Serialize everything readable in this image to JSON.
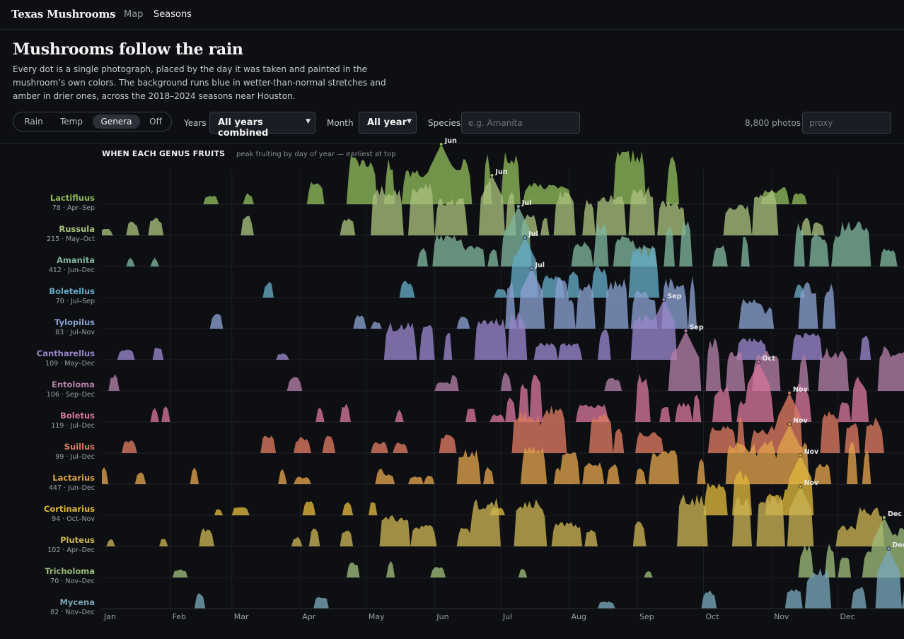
{
  "header": {
    "brand": "Texas Mushrooms",
    "nav": [
      {
        "label": "Map",
        "active": false
      },
      {
        "label": "Seasons",
        "active": true
      }
    ]
  },
  "page": {
    "title": "Mushrooms follow the rain",
    "intro": "Every dot is a single photograph, placed by the day it was taken and painted in the mushroom’s own colors. The background runs blue in wetter-than-normal stretches and amber in drier ones, across the 2018–2024 seasons near Houston."
  },
  "controls": {
    "modes": [
      {
        "label": "Rain",
        "active": false
      },
      {
        "label": "Temp",
        "active": false
      },
      {
        "label": "Genera",
        "active": true
      },
      {
        "label": "Off",
        "active": false
      }
    ],
    "years_label": "Years",
    "years_value": "All years combined",
    "month_label": "Month",
    "month_value": "All year",
    "species_label": "Species",
    "species_placeholder": "e.g. Amanita",
    "photo_count": "8,800 photos",
    "proxy_placeholder": "proxy"
  },
  "chart_data": {
    "type": "area",
    "title": "WHEN EACH GENUS FRUITS",
    "subtitle": "peak fruiting by day of year — earliest at top",
    "x_axis": {
      "unit": "day of year",
      "range": [
        1,
        365
      ],
      "ticks": [
        "Jan",
        "Feb",
        "Mar",
        "Apr",
        "May",
        "Jun",
        "Jul",
        "Aug",
        "Sep",
        "Oct",
        "Nov",
        "Dec"
      ]
    },
    "series": [
      {
        "name": "Lactifluus",
        "meta": "78 · Apr–Sep",
        "color": "#8fb85a",
        "peak_day": 155,
        "peak_label": "Jun",
        "season": [
          95,
          260
        ]
      },
      {
        "name": "Russula",
        "meta": "215 · May–Oct",
        "color": "#a9c07c",
        "peak_day": 178,
        "peak_label": "Jun",
        "season": [
          120,
          300
        ]
      },
      {
        "name": "Amanita",
        "meta": "412 · Jun–Dec",
        "color": "#7fb59b",
        "peak_day": 190,
        "peak_label": "Jul",
        "season": [
          150,
          350
        ]
      },
      {
        "name": "Boletellus",
        "meta": "70 · Jul–Sep",
        "color": "#67aac5",
        "peak_day": 193,
        "peak_label": "Jul",
        "season": [
          182,
          265
        ]
      },
      {
        "name": "Tylopilus",
        "meta": "83 · Jul–Nov",
        "color": "#8ba0d0",
        "peak_day": 196,
        "peak_label": "Jul",
        "season": [
          182,
          330
        ]
      },
      {
        "name": "Cantharellus",
        "meta": "109 · May–Dec",
        "color": "#9a87cc",
        "peak_day": 256,
        "peak_label": "Sep",
        "season": [
          120,
          350
        ]
      },
      {
        "name": "Entoloma",
        "meta": "106 · Sep–Dec",
        "color": "#b57fa6",
        "peak_day": 266,
        "peak_label": "Sep",
        "season": [
          244,
          365
        ]
      },
      {
        "name": "Boletus",
        "meta": "119 · Jul–Dec",
        "color": "#d5759a",
        "peak_day": 299,
        "peak_label": "Oct",
        "season": [
          182,
          350
        ]
      },
      {
        "name": "Suillus",
        "meta": "99 · Jul–Dec",
        "color": "#dc7a60",
        "peak_day": 313,
        "peak_label": "Nov",
        "season": [
          182,
          365
        ]
      },
      {
        "name": "Lactarius",
        "meta": "447 · Jun–Dec",
        "color": "#e0a24c",
        "peak_day": 313,
        "peak_label": "Nov",
        "season": [
          150,
          350
        ]
      },
      {
        "name": "Cortinarius",
        "meta": "94 · Oct–Nov",
        "color": "#e0b73c",
        "peak_day": 318,
        "peak_label": "Nov",
        "season": [
          274,
          334
        ]
      },
      {
        "name": "Pluteus",
        "meta": "102 · Apr–Dec",
        "color": "#c9b252",
        "peak_day": 318,
        "peak_label": "Nov",
        "season": [
          95,
          350
        ]
      },
      {
        "name": "Tricholoma",
        "meta": "70 · Nov–Dec",
        "color": "#9dbb79",
        "peak_day": 356,
        "peak_label": "Dec",
        "season": [
          305,
          365
        ]
      },
      {
        "name": "Mycena",
        "meta": "82 · Nov–Dec",
        "color": "#78a6b8",
        "peak_day": 358,
        "peak_label": "Dec",
        "season": [
          305,
          365
        ]
      }
    ]
  }
}
